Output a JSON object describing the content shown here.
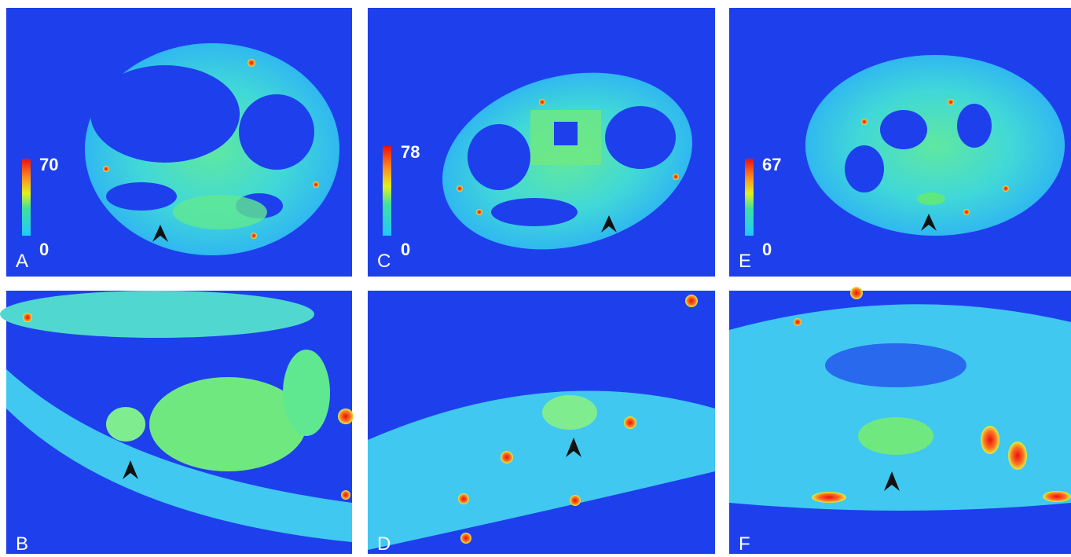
{
  "panels": [
    {
      "label": "A",
      "scale_max": 70,
      "scale_min": 0
    },
    {
      "label": "C",
      "scale_max": 78,
      "scale_min": 0
    },
    {
      "label": "E",
      "scale_max": 67,
      "scale_min": 0
    },
    {
      "label": "B"
    },
    {
      "label": "D"
    },
    {
      "label": "F"
    }
  ]
}
